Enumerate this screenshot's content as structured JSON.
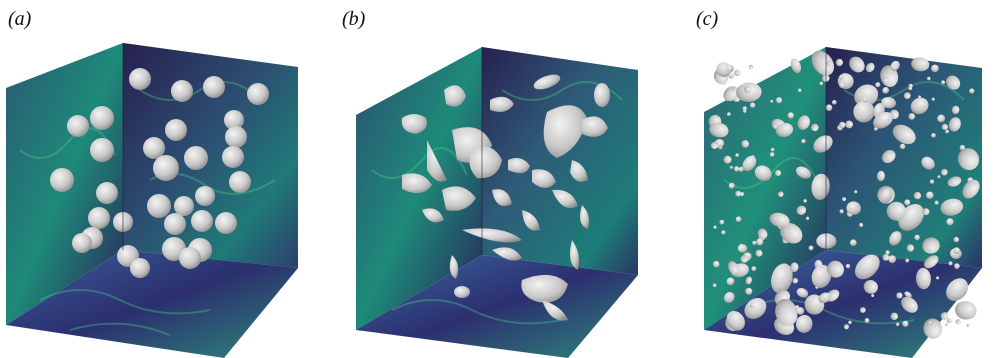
{
  "panels": [
    {
      "id": "a",
      "label": "(a)"
    },
    {
      "id": "b",
      "label": "(b)"
    },
    {
      "id": "c",
      "label": "(c)"
    }
  ],
  "colors": {
    "background": "#ffffff",
    "field_dark": "#2a1f5c",
    "field_mid": "#2f5f78",
    "field_teal": "#1f8f7a",
    "field_green": "#3ec07a",
    "bubble": "#d6d6d6",
    "bubble_shade": "#9a9a9a"
  }
}
